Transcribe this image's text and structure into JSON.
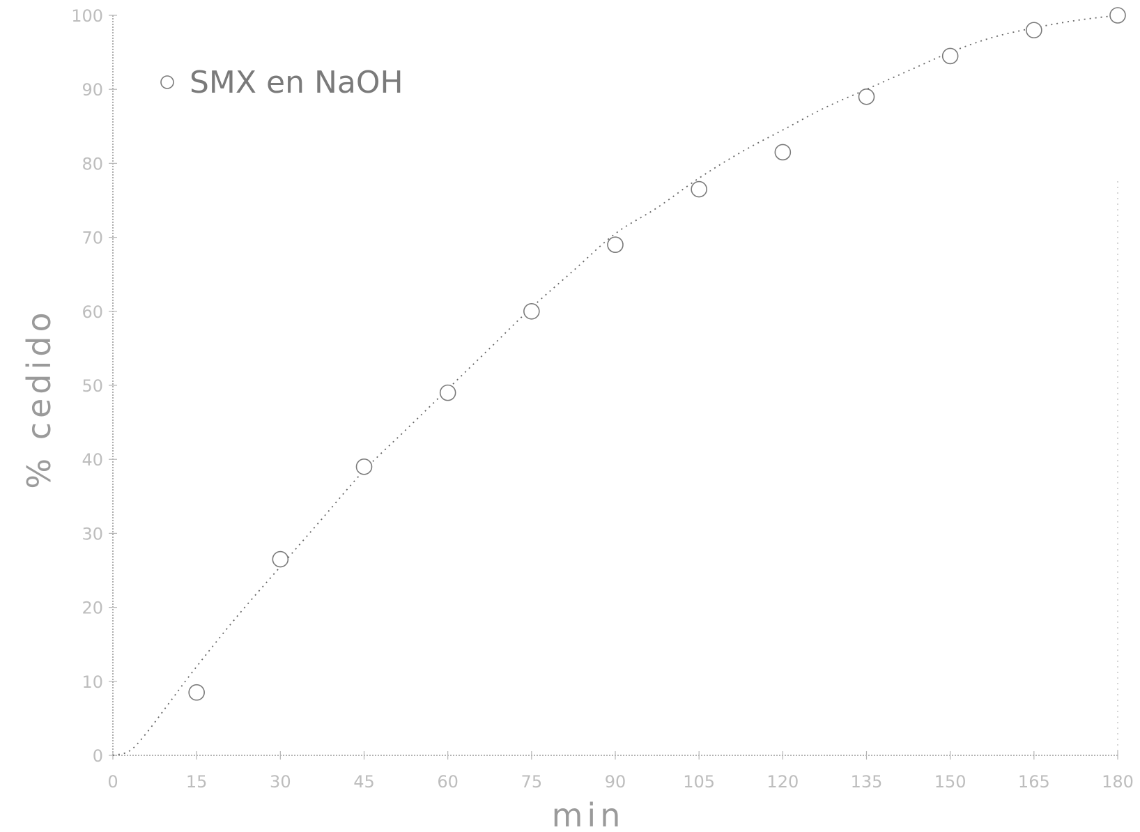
{
  "chart_data": {
    "type": "scatter",
    "title": "",
    "xlabel": "min",
    "ylabel": "% cedido",
    "x_ticks": [
      "0",
      "15",
      "30",
      "45",
      "60",
      "75",
      "90",
      "105",
      "120",
      "135",
      "150",
      "165",
      "180"
    ],
    "y_ticks": [
      "0",
      "10",
      "20",
      "30",
      "40",
      "50",
      "60",
      "70",
      "80",
      "90",
      "100"
    ],
    "xlim": [
      0,
      180
    ],
    "ylim": [
      0,
      100
    ],
    "grid": false,
    "legend_position": "top-left",
    "series": [
      {
        "name": "SMX en NaOH",
        "marker": "open-circle",
        "x": [
          15,
          30,
          45,
          60,
          75,
          90,
          105,
          120,
          135,
          150,
          165,
          180
        ],
        "y": [
          8.5,
          26.5,
          39,
          49,
          60,
          69,
          76.5,
          81.5,
          89,
          94.5,
          98,
          100
        ]
      }
    ],
    "fit_curve": {
      "style": "dotted",
      "x": [
        0,
        3,
        6,
        10,
        15,
        22.5,
        30,
        37.5,
        45,
        52.5,
        60,
        67.5,
        75,
        82.5,
        90,
        97.5,
        105,
        112.5,
        120,
        127.5,
        135,
        142.5,
        150,
        157.5,
        165,
        172.5,
        180
      ],
      "y": [
        0,
        0.6,
        3,
        7,
        12,
        19,
        25.5,
        32,
        38.5,
        44,
        49.5,
        55,
        60.5,
        65.5,
        70.5,
        74,
        78,
        81.5,
        84.5,
        87.5,
        90,
        92.5,
        95,
        97,
        98.3,
        99.3,
        100
      ]
    }
  }
}
